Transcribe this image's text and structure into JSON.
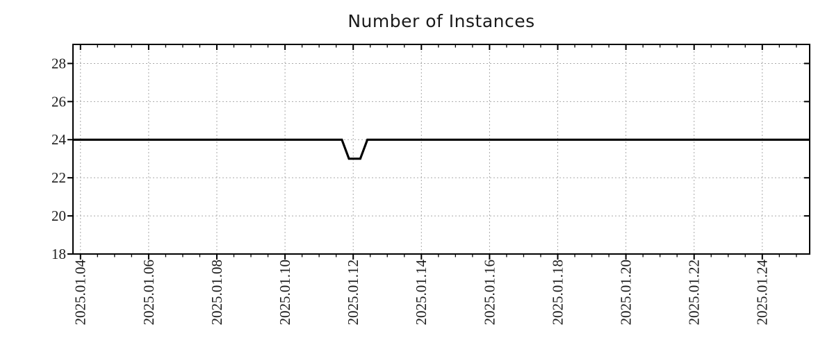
{
  "title": "Number of Instances",
  "colors": {
    "line": "#000000",
    "grid": "#a9a9a9",
    "axis": "#000000",
    "text": "#1c1c1c",
    "background": "#ffffff"
  },
  "chart_data": {
    "type": "line",
    "title": "Number of Instances",
    "xlabel": "",
    "ylabel": "",
    "grid": true,
    "legend": false,
    "x_axis": {
      "tick_labels": [
        "2025.01.04",
        "2025.01.06",
        "2025.01.08",
        "2025.01.10",
        "2025.01.12",
        "2025.01.14",
        "2025.01.16",
        "2025.01.18",
        "2025.01.20",
        "2025.01.22",
        "2025.01.24"
      ],
      "tick_days": [
        4,
        6,
        8,
        10,
        12,
        14,
        16,
        18,
        20,
        22,
        24
      ],
      "minor_step_days": 0.5,
      "range_days": [
        3.78,
        25.39
      ],
      "label_rotation_deg": 90
    },
    "y_axis": {
      "tick_labels": [
        "18",
        "20",
        "22",
        "24",
        "26",
        "28"
      ],
      "ticks": [
        18,
        20,
        22,
        24,
        26,
        28
      ],
      "range": [
        18,
        29
      ]
    },
    "series": [
      {
        "name": "Number of Instances",
        "color": "#000000",
        "points": [
          [
            "2025-01-03 19:00",
            24
          ],
          [
            "2025-01-11 16:00",
            24
          ],
          [
            "2025-01-11 21:00",
            23
          ],
          [
            "2025-01-12 05:00",
            23
          ],
          [
            "2025-01-12 10:00",
            24
          ],
          [
            "2025-01-25 09:00",
            24
          ]
        ]
      }
    ]
  }
}
